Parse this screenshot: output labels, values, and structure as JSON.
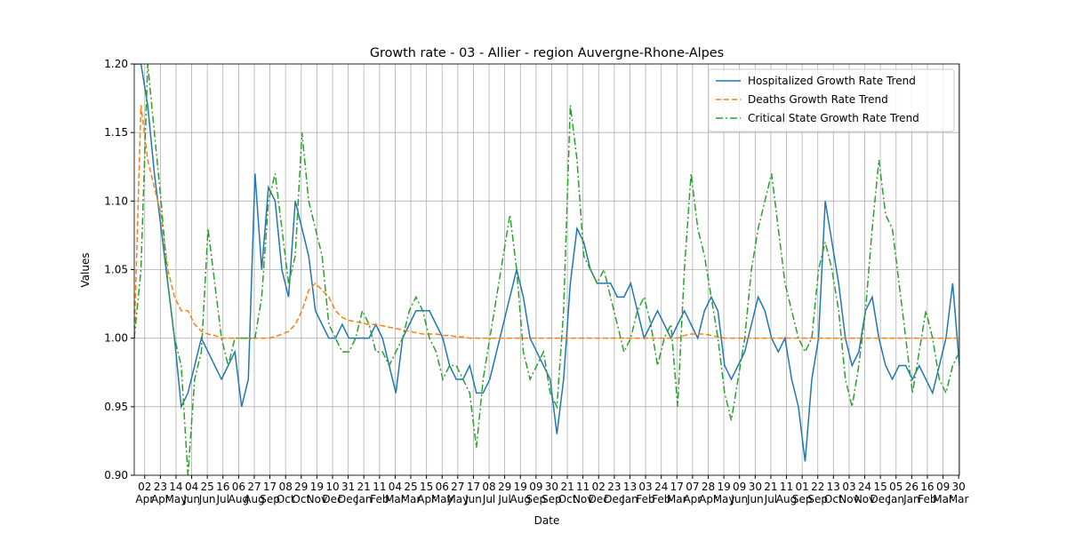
{
  "chart_data": {
    "type": "line",
    "title": "Growth rate - 03 - Allier - region Auvergne-Rhone-Alpes",
    "xlabel": "Date",
    "ylabel": "Values",
    "xlim": [
      0,
      123
    ],
    "ylim": [
      0.9,
      1.2
    ],
    "yticks": [
      {
        "value": 0.9,
        "label": "0.90"
      },
      {
        "value": 0.95,
        "label": "0.95"
      },
      {
        "value": 1.0,
        "label": "1.00"
      },
      {
        "value": 1.05,
        "label": "1.05"
      },
      {
        "value": 1.1,
        "label": "1.10"
      },
      {
        "value": 1.15,
        "label": "1.15"
      },
      {
        "value": 1.2,
        "label": "1.20"
      }
    ],
    "xticks": [
      {
        "value": 1.56,
        "label": "02\nApr"
      },
      {
        "value": 3.89,
        "label": "23\nApr"
      },
      {
        "value": 6.22,
        "label": "14\nMay"
      },
      {
        "value": 8.56,
        "label": "04\nJun"
      },
      {
        "value": 10.89,
        "label": "25\nJun"
      },
      {
        "value": 13.22,
        "label": "16\nJul"
      },
      {
        "value": 15.56,
        "label": "06\nAug"
      },
      {
        "value": 17.89,
        "label": "27\nAug"
      },
      {
        "value": 20.22,
        "label": "17\nSep"
      },
      {
        "value": 22.56,
        "label": "08\nOct"
      },
      {
        "value": 24.89,
        "label": "29\nOct"
      },
      {
        "value": 27.22,
        "label": "19\nNov"
      },
      {
        "value": 29.56,
        "label": "10\nDec"
      },
      {
        "value": 31.89,
        "label": "31\nDec"
      },
      {
        "value": 34.22,
        "label": "21\nJan"
      },
      {
        "value": 36.56,
        "label": "11\nFeb"
      },
      {
        "value": 38.89,
        "label": "04\nMar"
      },
      {
        "value": 41.22,
        "label": "25\nMar"
      },
      {
        "value": 43.56,
        "label": "15\nApr"
      },
      {
        "value": 45.89,
        "label": "06\nMay"
      },
      {
        "value": 48.22,
        "label": "27\nMay"
      },
      {
        "value": 50.56,
        "label": "17\nJun"
      },
      {
        "value": 52.89,
        "label": "08\nJul"
      },
      {
        "value": 55.22,
        "label": "29\nJul"
      },
      {
        "value": 57.56,
        "label": "19\nAug"
      },
      {
        "value": 59.89,
        "label": "09\nSep"
      },
      {
        "value": 62.22,
        "label": "30\nSep"
      },
      {
        "value": 64.56,
        "label": "21\nOct"
      },
      {
        "value": 66.89,
        "label": "11\nNov"
      },
      {
        "value": 69.22,
        "label": "02\nDec"
      },
      {
        "value": 71.56,
        "label": "23\nDec"
      },
      {
        "value": 73.89,
        "label": "13\nJan"
      },
      {
        "value": 76.22,
        "label": "03\nFeb"
      },
      {
        "value": 78.56,
        "label": "24\nFeb"
      },
      {
        "value": 80.89,
        "label": "17\nMar"
      },
      {
        "value": 83.22,
        "label": "07\nApr"
      },
      {
        "value": 85.56,
        "label": "28\nApr"
      },
      {
        "value": 87.89,
        "label": "19\nMay"
      },
      {
        "value": 90.22,
        "label": "09\nJun"
      },
      {
        "value": 92.56,
        "label": "30\nJun"
      },
      {
        "value": 94.89,
        "label": "21\nJul"
      },
      {
        "value": 97.22,
        "label": "11\nAug"
      },
      {
        "value": 99.56,
        "label": "01\nSep"
      },
      {
        "value": 101.89,
        "label": "22\nSep"
      },
      {
        "value": 104.22,
        "label": "13\nOct"
      },
      {
        "value": 106.56,
        "label": "03\nNov"
      },
      {
        "value": 108.89,
        "label": "24\nNov"
      },
      {
        "value": 111.22,
        "label": "15\nDec"
      },
      {
        "value": 113.56,
        "label": "05\nJan"
      },
      {
        "value": 115.89,
        "label": "26\nJan"
      },
      {
        "value": 118.22,
        "label": "16\nFeb"
      },
      {
        "value": 120.56,
        "label": "09\nMar"
      },
      {
        "value": 122.89,
        "label": "30\nMar"
      }
    ],
    "grid": true,
    "legend": "upper right",
    "series": [
      {
        "name": "Hospitalized Growth Rate Trend",
        "color": "#1f77b4",
        "style": "solid",
        "values": [
          1.2,
          1.2,
          1.17,
          1.12,
          1.08,
          1.04,
          1.0,
          0.95,
          0.96,
          0.98,
          1.0,
          0.99,
          0.98,
          0.97,
          0.98,
          0.99,
          0.95,
          0.97,
          1.12,
          1.05,
          1.11,
          1.1,
          1.05,
          1.03,
          1.1,
          1.08,
          1.06,
          1.02,
          1.01,
          1.0,
          1.0,
          1.01,
          1.0,
          1.0,
          1.0,
          1.0,
          1.01,
          1.0,
          0.98,
          0.96,
          1.0,
          1.01,
          1.02,
          1.02,
          1.02,
          1.01,
          1.0,
          0.98,
          0.97,
          0.97,
          0.98,
          0.96,
          0.96,
          0.97,
          0.99,
          1.01,
          1.03,
          1.05,
          1.03,
          1.0,
          0.99,
          0.98,
          0.97,
          0.93,
          0.97,
          1.04,
          1.08,
          1.07,
          1.05,
          1.04,
          1.04,
          1.04,
          1.03,
          1.03,
          1.04,
          1.02,
          1.0,
          1.01,
          1.02,
          1.01,
          1.0,
          1.01,
          1.02,
          1.01,
          1.0,
          1.02,
          1.03,
          1.02,
          0.98,
          0.97,
          0.98,
          0.99,
          1.01,
          1.03,
          1.02,
          1.0,
          0.99,
          1.0,
          0.97,
          0.95,
          0.91,
          0.97,
          1.0,
          1.1,
          1.07,
          1.04,
          1.0,
          0.98,
          0.99,
          1.02,
          1.03,
          1.0,
          0.98,
          0.97,
          0.98,
          0.98,
          0.97,
          0.98,
          0.97,
          0.96,
          0.98,
          1.0,
          1.04,
          0.98
        ]
      },
      {
        "name": "Deaths Growth Rate Trend",
        "color": "#ff7f0e",
        "style": "dashed",
        "values": [
          1.0,
          1.17,
          1.13,
          1.11,
          1.09,
          1.05,
          1.03,
          1.02,
          1.02,
          1.01,
          1.005,
          1.003,
          1.002,
          1.0,
          1.0,
          1.0,
          1.0,
          1.0,
          1.0,
          1.0,
          1.0,
          1.001,
          1.003,
          1.005,
          1.01,
          1.02,
          1.035,
          1.04,
          1.035,
          1.03,
          1.02,
          1.015,
          1.013,
          1.012,
          1.011,
          1.01,
          1.01,
          1.009,
          1.008,
          1.007,
          1.006,
          1.005,
          1.004,
          1.003,
          1.003,
          1.003,
          1.002,
          1.002,
          1.001,
          1.001,
          1.0,
          1.0,
          1.0,
          1.0,
          1.0,
          1.0,
          1.0,
          1.0,
          1.0,
          1.0,
          1.0,
          1.0,
          1.0,
          1.0,
          1.0,
          1.0,
          1.0,
          1.0,
          1.0,
          1.0,
          1.0,
          1.0,
          1.0,
          1.0,
          1.0,
          1.0,
          1.0,
          1.0,
          1.0,
          1.0,
          1.0,
          1.0,
          1.002,
          1.003,
          1.003,
          1.003,
          1.002,
          1.001,
          1.0,
          1.0,
          1.0,
          1.0,
          1.0,
          1.0,
          1.0,
          1.0,
          1.0,
          1.0,
          1.0,
          1.0,
          1.0,
          1.0,
          1.0,
          1.0,
          1.0,
          1.0,
          1.0,
          1.0,
          1.0,
          1.0,
          1.0,
          1.0,
          1.0,
          1.0,
          1.0,
          1.0,
          1.0,
          1.0,
          1.0,
          1.0,
          1.0,
          1.0,
          1.0,
          1.0
        ]
      },
      {
        "name": "Critical State Growth Rate Trend",
        "color": "#2ca02c",
        "style": "dashdot",
        "values": [
          1.0,
          1.05,
          1.2,
          1.15,
          1.1,
          1.04,
          1.0,
          0.98,
          0.9,
          0.97,
          0.99,
          1.08,
          1.04,
          1.0,
          0.98,
          1.0,
          1.0,
          1.0,
          1.0,
          1.03,
          1.1,
          1.12,
          1.08,
          1.04,
          1.06,
          1.15,
          1.1,
          1.08,
          1.06,
          1.01,
          1.0,
          0.99,
          0.99,
          1.0,
          1.02,
          1.01,
          0.99,
          0.99,
          0.98,
          0.99,
          1.0,
          1.02,
          1.03,
          1.02,
          1.0,
          0.99,
          0.97,
          0.98,
          0.98,
          0.97,
          0.96,
          0.92,
          0.97,
          1.0,
          1.03,
          1.06,
          1.09,
          1.05,
          0.99,
          0.97,
          0.98,
          0.99,
          0.96,
          0.95,
          1.02,
          1.17,
          1.13,
          1.06,
          1.05,
          1.04,
          1.05,
          1.03,
          1.01,
          0.99,
          1.0,
          1.02,
          1.03,
          1.01,
          0.98,
          1.0,
          1.01,
          0.95,
          1.05,
          1.12,
          1.08,
          1.06,
          1.03,
          1.0,
          0.96,
          0.94,
          0.97,
          1.0,
          1.05,
          1.08,
          1.1,
          1.12,
          1.08,
          1.04,
          1.02,
          1.0,
          0.99,
          1.0,
          1.05,
          1.07,
          1.05,
          1.02,
          0.97,
          0.95,
          0.98,
          1.02,
          1.08,
          1.13,
          1.09,
          1.08,
          1.04,
          1.0,
          0.96,
          0.99,
          1.02,
          1.0,
          0.97,
          0.96,
          0.98,
          0.99
        ]
      }
    ]
  }
}
